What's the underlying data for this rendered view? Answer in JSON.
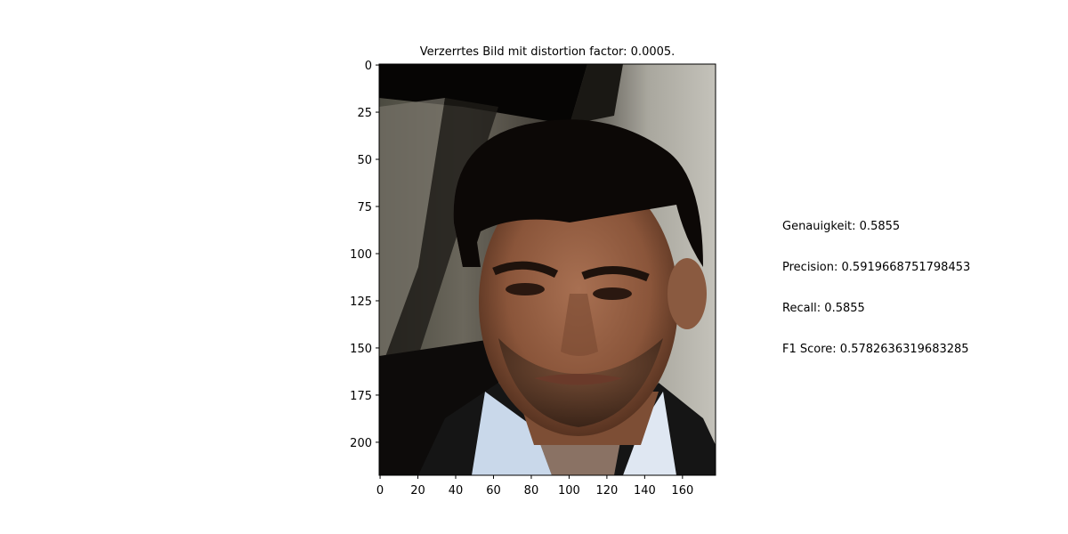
{
  "chart_data": {
    "type": "image",
    "title": "Verzerrtes Bild mit distortion factor: 0.0005.",
    "image": {
      "subject": "portrait-photo",
      "width": 178,
      "height": 218
    },
    "x_axis": {
      "ticks": [
        0,
        20,
        40,
        60,
        80,
        100,
        120,
        140,
        160
      ],
      "range": [
        -0.5,
        177.5
      ]
    },
    "y_axis": {
      "ticks": [
        0,
        25,
        50,
        75,
        100,
        125,
        150,
        175,
        200
      ],
      "range": [
        217.5,
        -0.5
      ],
      "inverted": true
    },
    "grid": false
  },
  "metrics": {
    "accuracy": "Genauigkeit: 0.5855",
    "precision": "Precision: 0.5919668751798453",
    "recall": "Recall: 0.5855",
    "f1": "F1 Score: 0.5782636319683285"
  },
  "colors": {
    "background_top": "#050403",
    "wall_left": "#5e5a4f",
    "wall_right": "#b8b6ae",
    "hair": "#0c0806",
    "skin": "#9a6446",
    "skin_shadow": "#5a3220",
    "shirt": "#c9d8ea",
    "jacket": "#121212"
  }
}
